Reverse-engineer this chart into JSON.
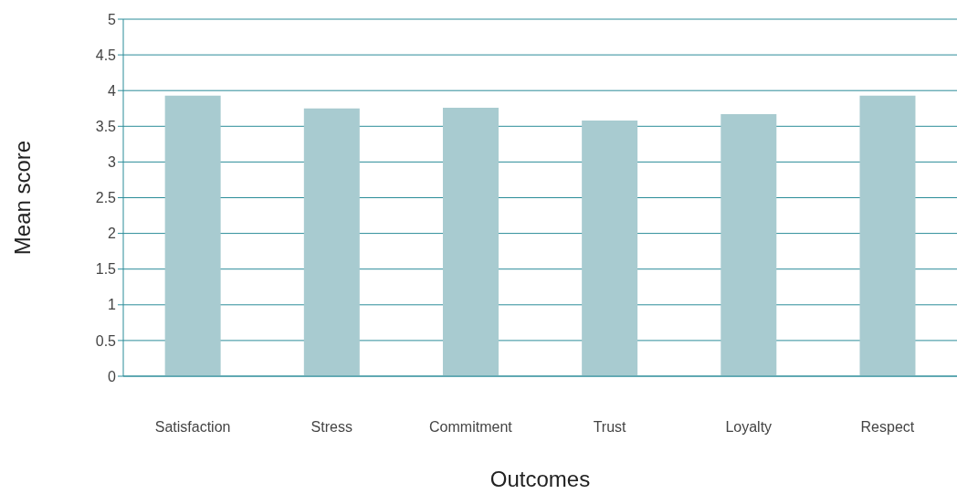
{
  "chart_data": {
    "type": "bar",
    "xlabel": "Outcomes",
    "ylabel": "Mean score",
    "categories": [
      "Satisfaction",
      "Stress",
      "Commitment",
      "Trust",
      "Loyalty",
      "Respect"
    ],
    "values": [
      3.93,
      3.75,
      3.76,
      3.58,
      3.67,
      3.93
    ],
    "color": "#a8cbd0",
    "ylim": [
      0,
      5
    ],
    "yticks": [
      0,
      0.5,
      1,
      1.5,
      2,
      2.5,
      3,
      3.5,
      4,
      4.5,
      5
    ],
    "grid": "y"
  }
}
